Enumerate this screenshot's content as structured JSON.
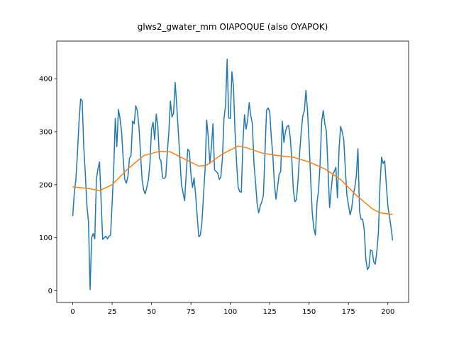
{
  "chart_data": {
    "type": "line",
    "title": "glws2_gwater_mm OIAPOQUE (also OYAPOK)",
    "xlim": [
      -10.15,
      213.15
    ],
    "ylim": [
      -22,
      471
    ],
    "xticks": [
      0,
      25,
      50,
      75,
      100,
      125,
      150,
      175,
      200
    ],
    "yticks": [
      0,
      100,
      200,
      300,
      400
    ],
    "series": [
      {
        "color": "#1f77b4",
        "x": [
          0,
          1,
          2,
          3,
          4,
          5,
          6,
          7,
          8,
          9,
          10,
          11,
          12,
          13,
          14,
          15,
          16,
          17,
          18,
          19,
          20,
          21,
          22,
          23,
          24,
          25,
          26,
          27,
          28,
          29,
          30,
          31,
          32,
          33,
          34,
          35,
          36,
          37,
          38,
          39,
          40,
          41,
          42,
          43,
          44,
          45,
          46,
          47,
          48,
          49,
          50,
          51,
          52,
          53,
          54,
          55,
          56,
          57,
          58,
          59,
          60,
          61,
          62,
          63,
          64,
          65,
          66,
          67,
          68,
          69,
          70,
          71,
          72,
          73,
          74,
          75,
          76,
          77,
          78,
          79,
          80,
          81,
          82,
          83,
          84,
          85,
          86,
          87,
          88,
          89,
          90,
          91,
          92,
          93,
          94,
          95,
          96,
          97,
          98,
          99,
          100,
          101,
          102,
          103,
          104,
          105,
          106,
          107,
          108,
          109,
          110,
          111,
          112,
          113,
          114,
          115,
          116,
          117,
          118,
          119,
          120,
          121,
          122,
          123,
          124,
          125,
          126,
          127,
          128,
          129,
          130,
          131,
          132,
          133,
          134,
          135,
          136,
          137,
          138,
          139,
          140,
          141,
          142,
          143,
          144,
          145,
          146,
          147,
          148,
          149,
          150,
          151,
          152,
          153,
          154,
          155,
          156,
          157,
          158,
          159,
          160,
          161,
          162,
          163,
          164,
          165,
          166,
          167,
          168,
          169,
          170,
          171,
          172,
          173,
          174,
          175,
          176,
          177,
          178,
          179,
          180,
          181,
          182,
          183,
          184,
          185,
          186,
          187,
          188,
          189,
          190,
          191,
          192,
          193,
          194,
          195,
          196,
          197,
          198,
          199,
          200,
          201,
          202,
          203
        ],
        "values": [
          141,
          185,
          210,
          260,
          320,
          362,
          358,
          270,
          220,
          160,
          130,
          2,
          100,
          108,
          98,
          210,
          230,
          243,
          170,
          97,
          100,
          103,
          98,
          103,
          105,
          165,
          230,
          325,
          272,
          342,
          325,
          300,
          250,
          210,
          203,
          215,
          250,
          255,
          320,
          315,
          349,
          340,
          310,
          260,
          210,
          190,
          183,
          195,
          210,
          240,
          305,
          318,
          285,
          333,
          310,
          250,
          245,
          213,
          212,
          215,
          260,
          300,
          358,
          328,
          335,
          393,
          350,
          300,
          250,
          200,
          185,
          170,
          220,
          267,
          263,
          220,
          195,
          213,
          180,
          140,
          102,
          105,
          130,
          180,
          230,
          322,
          290,
          240,
          270,
          315,
          228,
          225,
          222,
          210,
          215,
          250,
          325,
          350,
          437,
          326,
          325,
          413,
          385,
          300,
          240,
          195,
          187,
          186,
          280,
          332,
          305,
          322,
          355,
          330,
          315,
          240,
          205,
          165,
          147,
          160,
          168,
          180,
          260,
          340,
          345,
          338,
          290,
          255,
          200,
          173,
          195,
          220,
          225,
          320,
          280,
          300,
          310,
          312,
          290,
          250,
          190,
          168,
          172,
          210,
          260,
          300,
          330,
          340,
          378,
          340,
          280,
          210,
          147,
          118,
          105,
          165,
          190,
          240,
          320,
          340,
          315,
          300,
          230,
          157,
          190,
          220,
          225,
          233,
          175,
          267,
          310,
          300,
          285,
          230,
          180,
          162,
          143,
          155,
          180,
          195,
          218,
          268,
          150,
          135,
          135,
          115,
          60,
          40,
          45,
          77,
          75,
          55,
          50,
          75,
          110,
          200,
          252,
          240,
          245,
          200,
          160,
          140,
          120,
          95
        ]
      },
      {
        "color": "#ff7f0e",
        "x": [
          0,
          10,
          17,
          25,
          35,
          45,
          55,
          62,
          70,
          80,
          85,
          95,
          105,
          110,
          120,
          130,
          140,
          150,
          160,
          170,
          180,
          190,
          195,
          203
        ],
        "values": [
          196,
          193,
          189,
          200,
          230,
          255,
          263,
          262,
          250,
          235,
          237,
          258,
          273,
          270,
          260,
          255,
          252,
          243,
          230,
          210,
          180,
          155,
          147,
          144
        ]
      }
    ]
  }
}
